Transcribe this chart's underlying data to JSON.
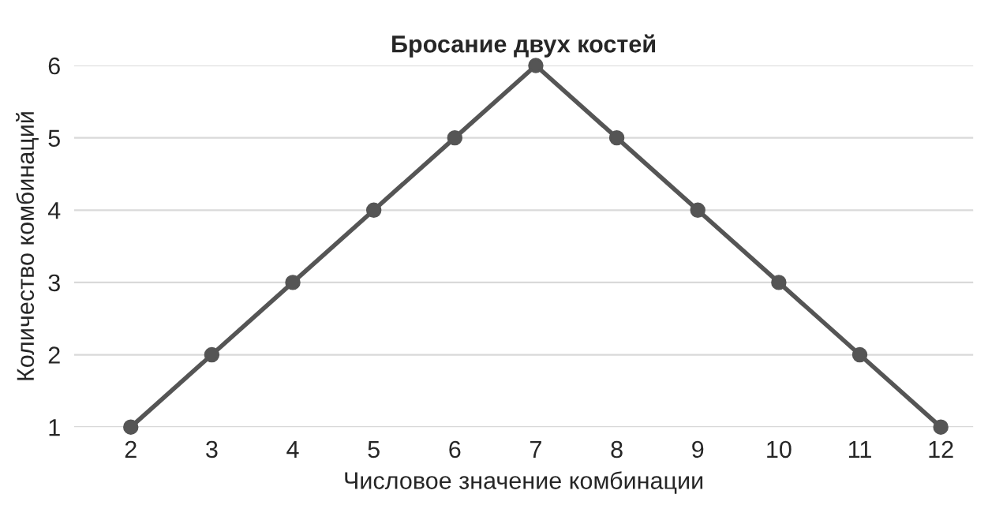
{
  "chart_data": {
    "type": "line",
    "title": "Бросание двух костей",
    "xlabel": "Числовое значение комбинации",
    "ylabel": "Количество комбинаций",
    "x": [
      2,
      3,
      4,
      5,
      6,
      7,
      8,
      9,
      10,
      11,
      12
    ],
    "series": [
      {
        "color": "#555555",
        "values": [
          1,
          2,
          3,
          4,
          5,
          6,
          5,
          4,
          3,
          2,
          1
        ]
      }
    ],
    "xlim": [
      1.3,
      12.4
    ],
    "xticks": [
      2,
      3,
      4,
      5,
      6,
      7,
      8,
      9,
      10,
      11,
      12
    ],
    "ylim": [
      1,
      6
    ],
    "yticks": [
      1,
      2,
      3,
      4,
      5,
      6
    ],
    "grid": "y",
    "marker": "circle",
    "line_style": "solid"
  }
}
